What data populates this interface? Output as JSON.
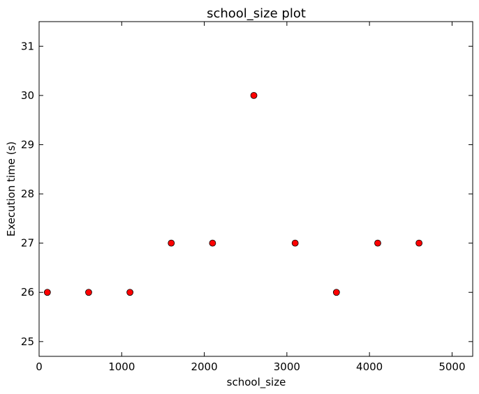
{
  "chart_data": {
    "type": "scatter",
    "title": "school_size plot",
    "xlabel": "school_size",
    "ylabel": "Execution time (s)",
    "xlim": [
      0,
      5250
    ],
    "ylim": [
      24.7,
      31.5
    ],
    "x_ticks": [
      0,
      1000,
      2000,
      3000,
      4000,
      5000
    ],
    "y_ticks": [
      25,
      26,
      27,
      28,
      29,
      30,
      31
    ],
    "grid": false,
    "legend": "none",
    "marker_color": "#ff0000",
    "marker_edge_color": "#000000",
    "series": [
      {
        "x": [
          100,
          600,
          1100,
          1600,
          2100,
          2600,
          3100,
          3600,
          4100,
          4600
        ],
        "y": [
          26,
          26,
          26,
          27,
          27,
          30,
          27,
          26,
          27,
          27
        ]
      }
    ]
  }
}
